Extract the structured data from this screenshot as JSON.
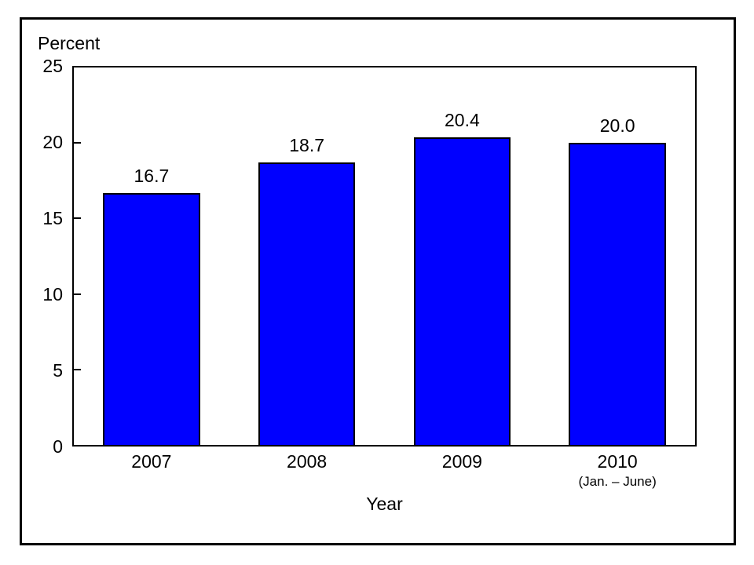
{
  "chart_data": {
    "type": "bar",
    "title": "",
    "ylabel": "Percent",
    "xlabel": "Year",
    "categories": [
      "2007",
      "2008",
      "2009",
      "2010"
    ],
    "category_sublabels": [
      "",
      "",
      "",
      "(Jan. – June)"
    ],
    "values": [
      16.7,
      18.7,
      20.4,
      20.0
    ],
    "value_labels": [
      "16.7",
      "18.7",
      "20.4",
      "20.0"
    ],
    "ylim": [
      0,
      25
    ],
    "yticks": [
      0,
      5,
      10,
      15,
      20,
      25
    ],
    "bar_color": "#0000ff",
    "bar_border_color": "#000000",
    "axis_color": "#000000",
    "grid": false,
    "legend_position": "none"
  }
}
